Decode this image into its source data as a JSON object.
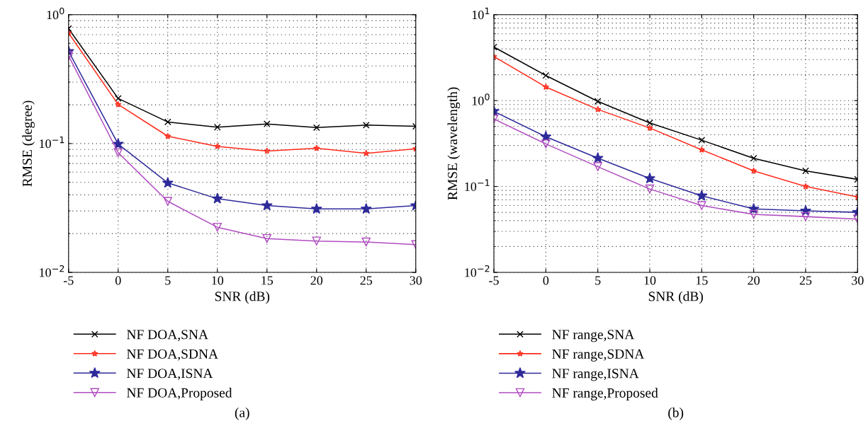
{
  "chart_data": [
    {
      "type": "line",
      "xlabel": "SNR (dB)",
      "ylabel": "RMSE (degree)",
      "log": "y",
      "grid": true,
      "legend": "bottom",
      "line_style": "solid",
      "x": [
        -5,
        0,
        5,
        10,
        15,
        20,
        25,
        30
      ],
      "xlim": [
        -5,
        30
      ],
      "xticks": [
        -5,
        0,
        5,
        10,
        15,
        20,
        25,
        30
      ],
      "ylim": [
        0.01,
        1
      ],
      "yticks": [
        {
          "value": 0.01,
          "label": "10$^{−2}$"
        },
        {
          "value": 0.1,
          "label": "10$^{−1}$"
        },
        {
          "value": 1,
          "label": "10$^{0}$"
        }
      ],
      "annotations": [
        "(a)"
      ],
      "series": [
        {
          "name": "NF DOA,SNA",
          "color": "#000000",
          "marker": "cross",
          "values": [
            0.78,
            0.224,
            0.147,
            0.134,
            0.142,
            0.133,
            0.139,
            0.136
          ]
        },
        {
          "name": "NF DOA,SDNA",
          "color": "#ff2a1a",
          "marker": "asterisk",
          "values": [
            0.72,
            0.201,
            0.114,
            0.095,
            0.0875,
            0.092,
            0.084,
            0.091
          ]
        },
        {
          "name": "NF DOA,ISNA",
          "color": "#2e2a9a",
          "marker": "star",
          "values": [
            0.52,
            0.099,
            0.0495,
            0.0373,
            0.033,
            0.0311,
            0.0311,
            0.033
          ]
        },
        {
          "name": "NF DOA,Proposed",
          "color": "#b04cc0",
          "marker": "triangle",
          "values": [
            0.48,
            0.085,
            0.0356,
            0.0224,
            0.0183,
            0.0175,
            0.0172,
            0.0164
          ]
        }
      ]
    },
    {
      "type": "line",
      "xlabel": "SNR (dB)",
      "ylabel": "RMSE (wavelength)",
      "log": "y",
      "grid": true,
      "legend": "bottom",
      "line_style": "solid",
      "x": [
        -5,
        0,
        5,
        10,
        15,
        20,
        25,
        30
      ],
      "xlim": [
        -5,
        30
      ],
      "xticks": [
        -5,
        0,
        5,
        10,
        15,
        20,
        25,
        30
      ],
      "ylim": [
        0.01,
        10
      ],
      "yticks": [
        {
          "value": 0.01,
          "label": "10$^{−2}$"
        },
        {
          "value": 0.1,
          "label": "10$^{−1}$"
        },
        {
          "value": 1,
          "label": "10$^{0}$"
        },
        {
          "value": 10,
          "label": "10$^{1}$"
        }
      ],
      "annotations": [
        "(b)"
      ],
      "series": [
        {
          "name": "NF range,SNA",
          "color": "#000000",
          "marker": "cross",
          "values": [
            4.2,
            1.96,
            0.98,
            0.55,
            0.346,
            0.213,
            0.152,
            0.121
          ]
        },
        {
          "name": "NF range,SDNA",
          "color": "#ff2a1a",
          "marker": "asterisk",
          "values": [
            3.26,
            1.44,
            0.79,
            0.48,
            0.267,
            0.152,
            0.1,
            0.0755
          ]
        },
        {
          "name": "NF range,ISNA",
          "color": "#2e2a9a",
          "marker": "star",
          "values": [
            0.75,
            0.38,
            0.214,
            0.124,
            0.078,
            0.0548,
            0.052,
            0.05
          ]
        },
        {
          "name": "NF range,Proposed",
          "color": "#b04cc0",
          "marker": "triangle",
          "values": [
            0.61,
            0.313,
            0.17,
            0.0935,
            0.06,
            0.0473,
            0.0446,
            0.0417
          ]
        }
      ]
    }
  ]
}
